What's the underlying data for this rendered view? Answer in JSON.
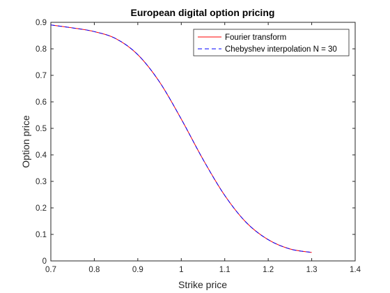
{
  "chart_data": {
    "type": "line",
    "title": "European digital option pricing",
    "xlabel": "Strike price",
    "ylabel": "Option price",
    "xlim": [
      0.7,
      1.4
    ],
    "ylim": [
      0,
      0.9
    ],
    "xticks": [
      0.7,
      0.8,
      0.9,
      1,
      1.1,
      1.2,
      1.3,
      1.4
    ],
    "xtick_labels": [
      "0.7",
      "0.8",
      "0.9",
      "1",
      "1.1",
      "1.2",
      "1.3",
      "1.4"
    ],
    "yticks": [
      0,
      0.1,
      0.2,
      0.3,
      0.4,
      0.5,
      0.6,
      0.7,
      0.8,
      0.9
    ],
    "ytick_labels": [
      "0",
      "0.1",
      "0.2",
      "0.3",
      "0.4",
      "0.5",
      "0.6",
      "0.7",
      "0.8",
      "0.9"
    ],
    "grid": false,
    "legend_position": "top-right",
    "x": [
      0.7,
      0.75,
      0.8,
      0.85,
      0.9,
      0.95,
      1.0,
      1.05,
      1.1,
      1.15,
      1.2,
      1.25,
      1.3
    ],
    "series": [
      {
        "name": "Fourier transform",
        "color": "#ff0000",
        "style": "solid",
        "values": [
          0.89,
          0.879,
          0.865,
          0.838,
          0.778,
          0.675,
          0.535,
          0.383,
          0.247,
          0.144,
          0.08,
          0.045,
          0.032
        ]
      },
      {
        "name": "Chebyshev interpolation N = 30",
        "color": "#0000ff",
        "style": "dashed",
        "values": [
          0.89,
          0.879,
          0.865,
          0.838,
          0.778,
          0.675,
          0.535,
          0.383,
          0.247,
          0.144,
          0.08,
          0.045,
          0.032
        ]
      }
    ]
  }
}
